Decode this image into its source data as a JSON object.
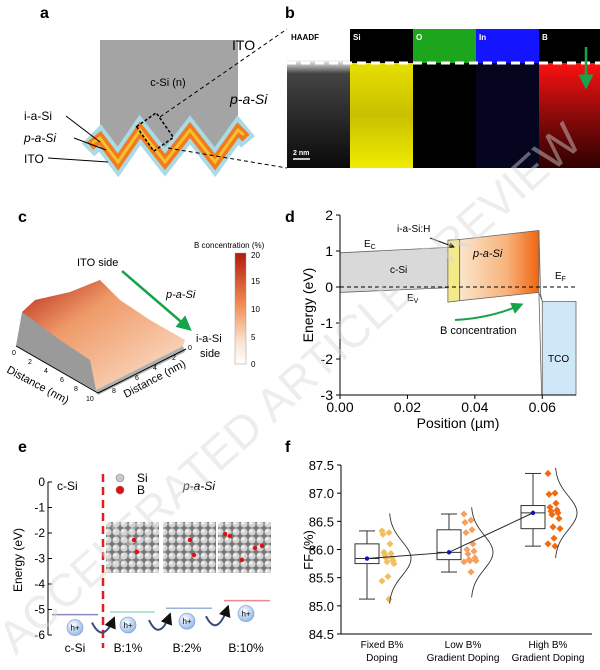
{
  "panel_labels": {
    "a": "a",
    "b": "b",
    "c": "c",
    "d": "d",
    "e": "e",
    "f": "f"
  },
  "watermark": "ACCELERATED ARTICLE PREVIEW",
  "panel_a": {
    "bulk": "c-Si (n)",
    "layers": [
      "i-a-Si",
      "p-a-Si",
      "ITO"
    ],
    "colors": {
      "bulk": "#a0a0a0",
      "i_layer": "#f2c12e",
      "p_layer": "#f47a20",
      "ito": "#a8dbe6"
    }
  },
  "panel_b": {
    "left_labels": [
      "ITO",
      "p-a-Si"
    ],
    "tiles": [
      {
        "label": "HAADF",
        "color": "#ffffff"
      },
      {
        "label": "Si",
        "color": "#e6e000"
      },
      {
        "label": "O",
        "color": "#1ea51e"
      },
      {
        "label": "In",
        "color": "#1414ff"
      },
      {
        "label": "B",
        "color": "#e01010"
      }
    ],
    "scale_bar": "2 nm"
  },
  "panel_c": {
    "top_label": "ITO side",
    "mid_label": "p-a-Si",
    "end_label_1": "i-a-Si",
    "end_label_2": "side",
    "axis_label": "Distance (nm)",
    "axis_ticks": [
      "0",
      "2",
      "4",
      "6",
      "8",
      "10"
    ],
    "axis2_ticks": [
      "0",
      "2",
      "4",
      "6",
      "8"
    ],
    "colorbar_title": "B concentration (%)",
    "colorbar_ticks": [
      "20",
      "15",
      "10",
      "5",
      "0"
    ],
    "colorbar_colors": [
      "#b21a10",
      "#ef8a50",
      "#fbe3cf",
      "#ffffff"
    ]
  },
  "chart_data": [
    {
      "panel": "d",
      "type": "area",
      "xlabel": "Position (µm)",
      "ylabel": "Energy (eV)",
      "xlim": [
        0,
        0.07
      ],
      "ylim": [
        -3,
        2
      ],
      "xticks": [
        "0.00",
        "0.02",
        "0.04",
        "0.06"
      ],
      "yticks": [
        "2",
        "1",
        "0",
        "-1",
        "-2",
        "-3"
      ],
      "regions": [
        {
          "label": "c-Si",
          "x": [
            0,
            0.032
          ],
          "top": [
            0.95,
            1.1
          ],
          "bottom": [
            -0.15,
            -0.02
          ],
          "color": "#d9d9d9"
        },
        {
          "label": "i-a-Si:H",
          "x": [
            0.032,
            0.0355
          ],
          "top": [
            1.3,
            1.32
          ],
          "bottom": [
            -0.42,
            -0.38
          ],
          "color": "#f5ea8a"
        },
        {
          "label": "p-a-Si",
          "x": [
            0.0355,
            0.059
          ],
          "top": [
            1.32,
            1.57
          ],
          "bottom": [
            -0.38,
            -0.15
          ],
          "color": "#f47a20"
        },
        {
          "label": "TCO",
          "x": [
            0.06,
            0.07
          ],
          "top": [
            -0.4,
            -0.4
          ],
          "bottom": [
            -3,
            -3
          ],
          "color": "#cfe8f7"
        }
      ],
      "annotations": {
        "ec": "E",
        "ec_sub": "C",
        "ev": "E",
        "ev_sub": "V",
        "ef": "E",
        "ef_sub": "F",
        "arrow_text": "B concentration"
      },
      "fermi_level": 0
    },
    {
      "panel": "e",
      "type": "diagram",
      "ylabel": "Energy (eV)",
      "ylim": [
        -6,
        0
      ],
      "yticks": [
        "0",
        "-1",
        "-2",
        "-3",
        "-4",
        "-5",
        "-6"
      ],
      "top_left": "c-Si",
      "top_right": "p-a-Si",
      "legend": [
        {
          "name": "Si",
          "color": "#c8c8c8"
        },
        {
          "name": "B",
          "color": "#e01010"
        }
      ],
      "hole_label": "h+",
      "levels": [
        {
          "category": "c-Si",
          "energy": -5.2,
          "color": "#8a86c0"
        },
        {
          "category": "B:1%",
          "energy": -5.1,
          "color": "#9fd8c8"
        },
        {
          "category": "B:2%",
          "energy": -4.95,
          "color": "#9ab4d8"
        },
        {
          "category": "B:10%",
          "energy": -4.65,
          "color": "#f08a8a"
        }
      ]
    },
    {
      "panel": "f",
      "type": "box",
      "ylabel": "FF (%)",
      "ylim": [
        84.5,
        87.5
      ],
      "yticks": [
        "87.5",
        "87.0",
        "86.5",
        "86.0",
        "85.5",
        "85.0",
        "84.5"
      ],
      "categories": [
        [
          "Fixed B%",
          "Doping"
        ],
        [
          "Low B%",
          "Gradient Doping"
        ],
        [
          "High B%",
          "Gradient Doping"
        ]
      ],
      "colors": [
        "#f0c060",
        "#f4a060",
        "#f06a10"
      ],
      "mean_color": "#1010c0",
      "boxes": [
        {
          "min": 85.12,
          "q1": 85.75,
          "median": 85.84,
          "q3": 86.1,
          "max": 86.33,
          "mean": 85.84
        },
        {
          "min": 85.6,
          "q1": 85.82,
          "median": 85.95,
          "q3": 86.35,
          "max": 86.63,
          "mean": 85.95
        },
        {
          "min": 86.06,
          "q1": 86.37,
          "median": 86.65,
          "q3": 86.78,
          "max": 87.35,
          "mean": 86.65
        }
      ],
      "points": [
        [
          86.33,
          86.3,
          86.27,
          86.1,
          85.95,
          85.93,
          85.9,
          85.85,
          85.85,
          85.8,
          85.78,
          85.75,
          85.52,
          85.44,
          85.12
        ],
        [
          86.63,
          86.52,
          86.48,
          86.35,
          86.3,
          86.1,
          86.0,
          85.97,
          85.92,
          85.85,
          85.82,
          85.8,
          85.8,
          85.78,
          85.6
        ],
        [
          87.35,
          87.0,
          86.98,
          86.82,
          86.75,
          86.7,
          86.68,
          86.65,
          86.62,
          86.55,
          86.4,
          86.37,
          86.2,
          86.1,
          86.06
        ]
      ]
    }
  ]
}
